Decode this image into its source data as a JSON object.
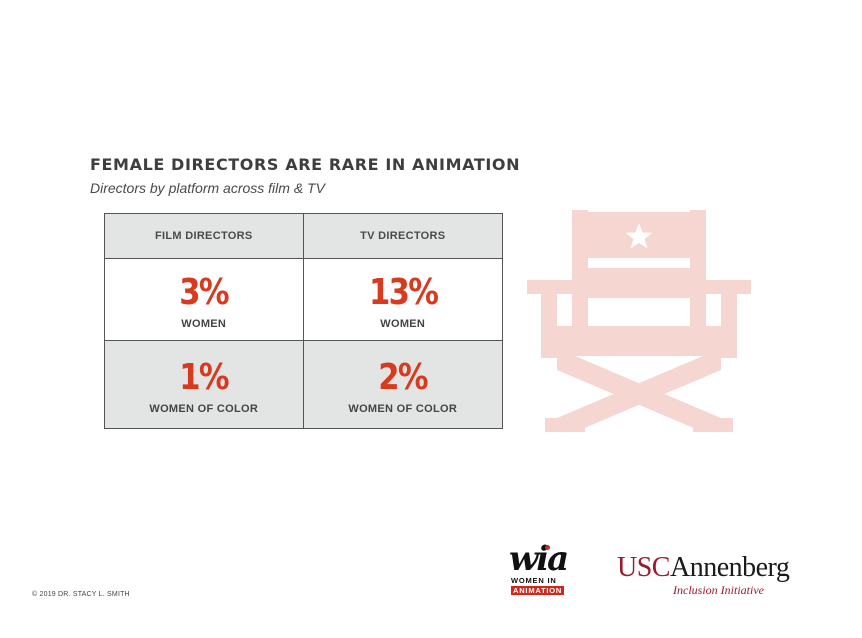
{
  "header": {
    "title": "FEMALE DIRECTORS ARE RARE IN ANIMATION",
    "subtitle": "Directors by platform across film & TV"
  },
  "table": {
    "columns": [
      "FILM DIRECTORS",
      "TV DIRECTORS"
    ],
    "rows": [
      {
        "label": "WOMEN",
        "values": [
          "3%",
          "13%"
        ]
      },
      {
        "label": "WOMEN OF COLOR",
        "values": [
          "1%",
          "2%"
        ]
      }
    ]
  },
  "illustration": {
    "icon": "director-chair-icon",
    "color": "#f6d6d1"
  },
  "footer": {
    "copyright": "© 2019 DR. STACY L. SMITH",
    "wia_logo": {
      "script": "wia",
      "line1": "WOMEN IN",
      "line2": "ANIMATION"
    },
    "usc_logo": {
      "part1": "USC",
      "part2": "Annenberg",
      "tagline": "Inclusion Initiative"
    }
  },
  "colors": {
    "accent": "#d73a1e",
    "header_bg": "#e3e5e4",
    "usc_cardinal": "#9a1b2e"
  }
}
